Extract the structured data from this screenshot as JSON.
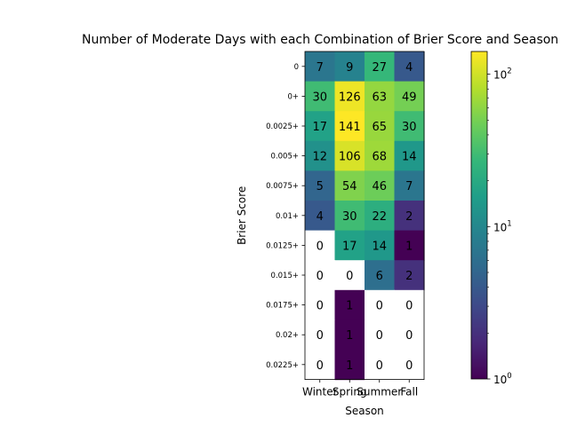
{
  "chart_data": {
    "type": "heatmap",
    "title": "Number of Moderate Days with each Combination of Brier Score and Season",
    "xlabel": "Season",
    "ylabel": "Brier Score",
    "x_categories": [
      "Winter",
      "Spring",
      "Summer",
      "Fall"
    ],
    "y_categories": [
      "0",
      "0+",
      "0.0025+",
      "0.005+",
      "0.0075+",
      "0.01+",
      "0.0125+",
      "0.015+",
      "0.0175+",
      "0.02+",
      "0.0225+"
    ],
    "values": [
      [
        7,
        9,
        27,
        4
      ],
      [
        30,
        126,
        63,
        49
      ],
      [
        17,
        141,
        65,
        30
      ],
      [
        12,
        106,
        68,
        14
      ],
      [
        5,
        54,
        46,
        7
      ],
      [
        4,
        30,
        22,
        2
      ],
      [
        0,
        17,
        14,
        1
      ],
      [
        0,
        0,
        6,
        2
      ],
      [
        0,
        1,
        0,
        0
      ],
      [
        0,
        1,
        0,
        0
      ],
      [
        0,
        1,
        0,
        0
      ]
    ],
    "color_scale": "log",
    "colormap": "viridis",
    "zero_color": "#ffffff",
    "colorbar": {
      "range": [
        1,
        141
      ],
      "tick_values": [
        1,
        10,
        100
      ],
      "tick_labels": [
        "10^0",
        "10^1",
        "10^2"
      ]
    }
  }
}
